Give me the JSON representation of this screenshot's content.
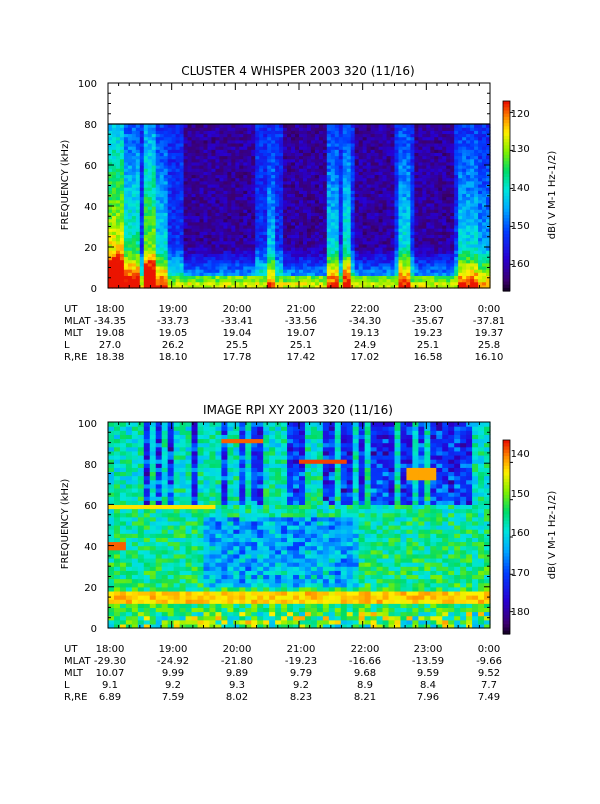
{
  "chart_data": [
    {
      "type": "heatmap",
      "title": "CLUSTER 4 WHISPER 2003 320 (11/16)",
      "ylabel": "FREQUENCY (kHz)",
      "ylim": [
        0,
        100
      ],
      "yticks": [
        "0",
        "20",
        "40",
        "60",
        "80",
        "100"
      ],
      "colorbar": {
        "label": "dB( V M-1 Hz-1/2)",
        "range": [
          -167,
          -117
        ],
        "ticks": [
          {
            "value": -120,
            "label": "-120"
          },
          {
            "value": -130,
            "label": "-130"
          },
          {
            "value": -140,
            "label": "-140"
          },
          {
            "value": -150,
            "label": "-150"
          },
          {
            "value": -160,
            "label": "-160"
          }
        ]
      },
      "data_fmax": 80,
      "ephemeris": {
        "row_labels": [
          "UT",
          "MLAT",
          "MLT",
          "L",
          "R,RE"
        ],
        "columns": [
          [
            "18:00",
            "-34.35",
            "19.08",
            "27.0",
            "18.38"
          ],
          [
            "19:00",
            "-33.73",
            "19.05",
            "26.2",
            "18.10"
          ],
          [
            "20:00",
            "-33.41",
            "19.04",
            "25.5",
            "17.78"
          ],
          [
            "21:00",
            "-33.56",
            "19.07",
            "25.1",
            "17.42"
          ],
          [
            "22:00",
            "-34.30",
            "19.13",
            "24.9",
            "17.02"
          ],
          [
            "23:00",
            "-35.67",
            "19.23",
            "25.1",
            "16.58"
          ],
          [
            "0:00",
            "-37.81",
            "19.37",
            "25.8",
            "16.10"
          ]
        ]
      }
    },
    {
      "type": "heatmap",
      "title": "IMAGE RPI XY 2003 320 (11/16)",
      "ylabel": "FREQUENCY (kHz)",
      "ylim": [
        0,
        100
      ],
      "yticks": [
        "0",
        "20",
        "40",
        "60",
        "80",
        "100"
      ],
      "colorbar": {
        "label": "dB( V M-1 Hz-1/2)",
        "range": [
          -186,
          -134
        ],
        "ticks": [
          {
            "value": -140,
            "label": "-140"
          },
          {
            "value": -150,
            "label": "-150"
          },
          {
            "value": -160,
            "label": "-160"
          },
          {
            "value": -170,
            "label": "-170"
          },
          {
            "value": -180,
            "label": "-180"
          }
        ]
      },
      "data_fmax": 100,
      "ephemeris": {
        "row_labels": [
          "UT",
          "MLAT",
          "MLT",
          "L",
          "R,RE"
        ],
        "columns": [
          [
            "18:00",
            "-29.30",
            "10.07",
            "9.1",
            "6.89"
          ],
          [
            "19:00",
            "-24.92",
            "9.99",
            "9.2",
            "7.59"
          ],
          [
            "20:00",
            "-21.80",
            "9.89",
            "9.3",
            "8.02"
          ],
          [
            "21:00",
            "-19.23",
            "9.79",
            "9.2",
            "8.23"
          ],
          [
            "22:00",
            "-16.66",
            "9.68",
            "8.9",
            "8.21"
          ],
          [
            "23:00",
            "-13.59",
            "9.59",
            "8.4",
            "7.96"
          ],
          [
            "0:00",
            "-9.66",
            "9.52",
            "7.7",
            "7.49"
          ]
        ]
      }
    }
  ]
}
